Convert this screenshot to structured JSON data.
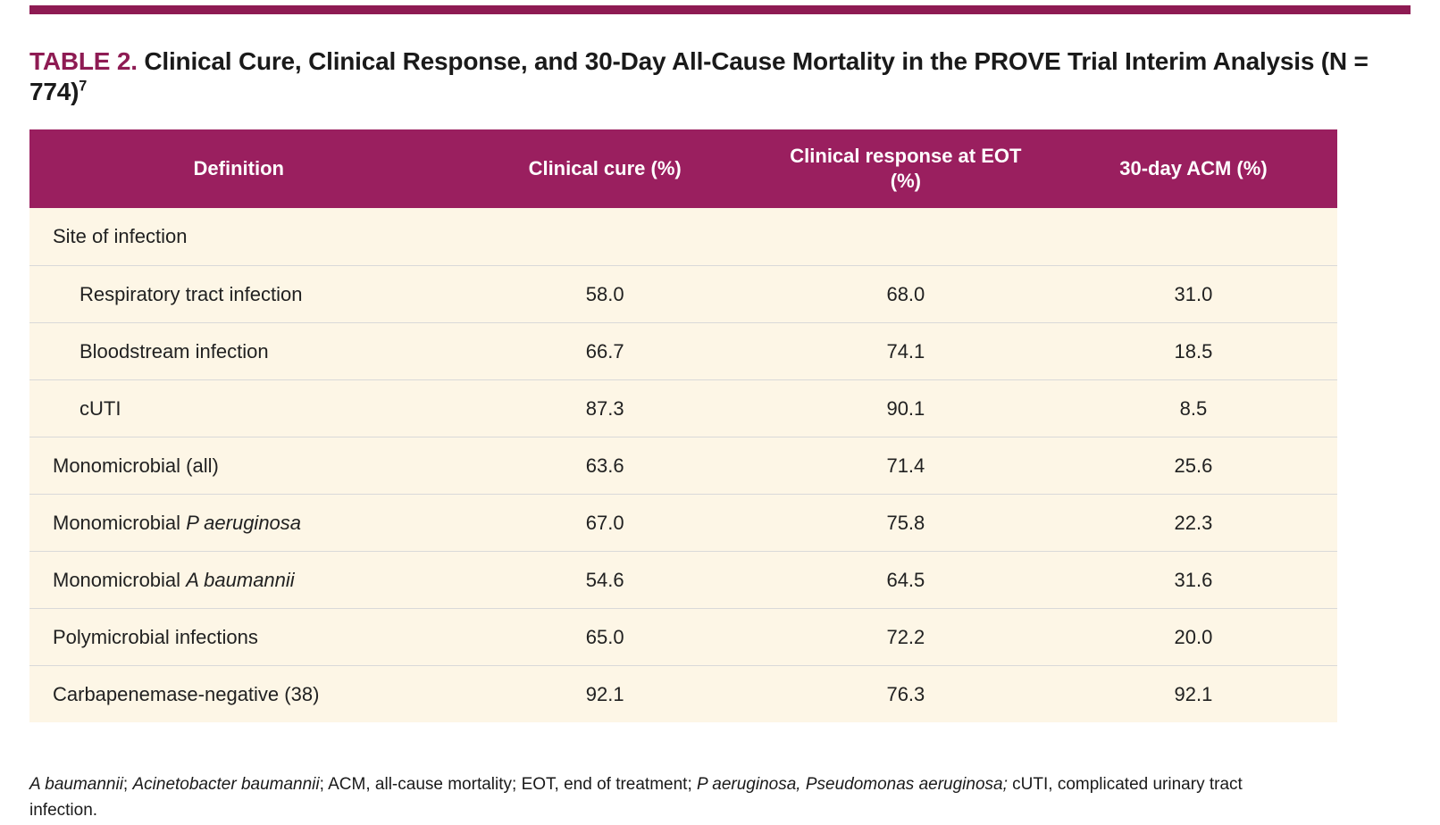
{
  "colors": {
    "accent": "#9a1f5f",
    "accent-dark": "#8e1b53",
    "table-bg": "#fdf6e6",
    "divider": "#d9d9d9",
    "text": "#212121"
  },
  "title": {
    "label": "TABLE 2.",
    "text": "Clinical Cure, Clinical Response, and 30-Day All-Cause Mortality in the PROVE Trial Interim Analysis (N = 774)",
    "reference": "7"
  },
  "table": {
    "headers": [
      "Definition",
      "Clinical cure (%)",
      "Clinical response at EOT (%)",
      "30-day ACM (%)"
    ],
    "rows": [
      {
        "label": "Site of infection",
        "section": true
      },
      {
        "label": "Respiratory tract infection",
        "indent": true,
        "values": [
          "58.0",
          "68.0",
          "31.0"
        ]
      },
      {
        "label": "Bloodstream infection",
        "indent": true,
        "values": [
          "66.7",
          "74.1",
          "18.5"
        ]
      },
      {
        "label": "cUTI",
        "indent": true,
        "values": [
          "87.3",
          "90.1",
          "8.5"
        ]
      },
      {
        "label": "Monomicrobial (all)",
        "values": [
          "63.6",
          "71.4",
          "25.6"
        ]
      },
      {
        "label_prefix": "Monomicrobial",
        "label_italic": "P aeruginosa",
        "values": [
          "67.0",
          "75.8",
          "22.3"
        ]
      },
      {
        "label_prefix": "Monomicrobial",
        "label_italic": "A baumannii",
        "values": [
          "54.6",
          "64.5",
          "31.6"
        ]
      },
      {
        "label": "Polymicrobial infections",
        "values": [
          "65.0",
          "72.2",
          "20.0"
        ]
      },
      {
        "label": "Carbapenemase-negative (38)",
        "values": [
          "92.1",
          "76.3",
          "92.1"
        ]
      }
    ]
  },
  "footnote": {
    "segments": [
      {
        "text": "A baumannii",
        "italic": true
      },
      {
        "text": "; ",
        "italic": false
      },
      {
        "text": "Acinetobacter baumannii",
        "italic": true
      },
      {
        "text": "; ACM, all-cause mortality; EOT, end of treatment; ",
        "italic": false
      },
      {
        "text": "P aeruginosa, Pseudomonas aeruginosa;",
        "italic": true
      },
      {
        "text": " cUTI, complicated urinary tract infection.",
        "italic": false
      }
    ]
  }
}
